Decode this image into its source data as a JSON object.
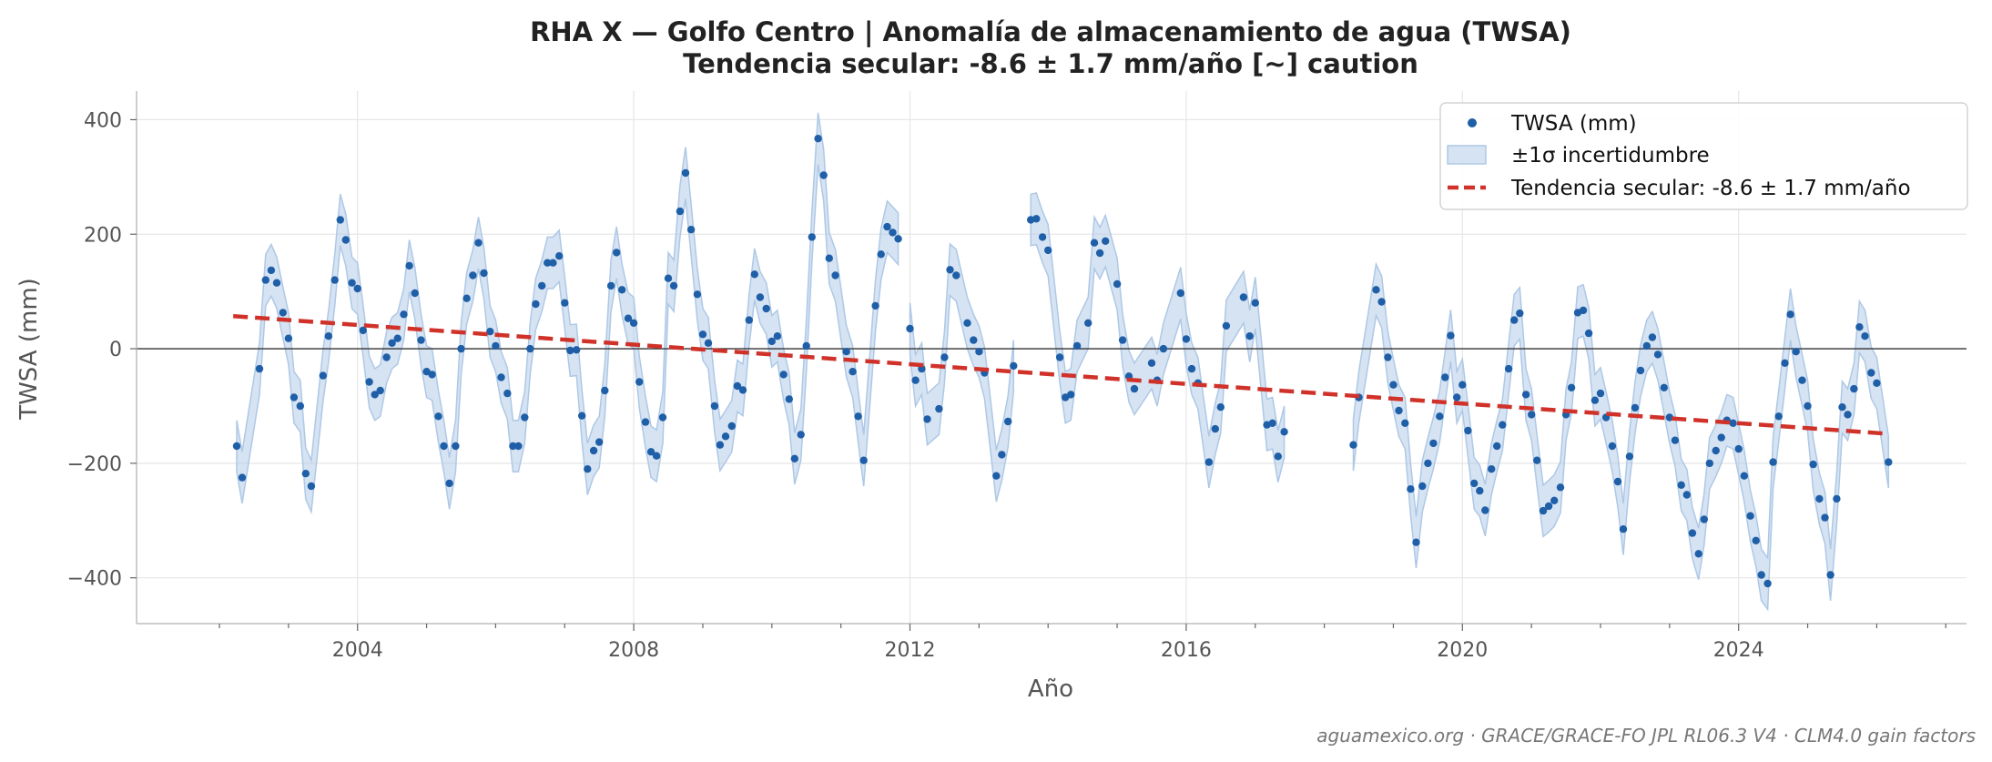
{
  "chart_data": {
    "type": "line",
    "title_line1": "RHA X — Golfo Centro  |  Anomalía de almacenamiento de agua (TWSA)",
    "title_line2": "Tendencia secular: -8.6 ± 1.7 mm/año  [~] caution",
    "xlabel": "Año",
    "ylabel": "TWSA (mm)",
    "xlim": [
      2000.8,
      2027.3
    ],
    "ylim": [
      -480,
      450
    ],
    "x_ticks": [
      2004,
      2008,
      2012,
      2016,
      2020,
      2024
    ],
    "y_ticks": [
      400,
      200,
      0,
      -200,
      -400
    ],
    "y_tick_labels": [
      "400",
      "200",
      "0",
      "−200",
      "−400"
    ],
    "grid": true,
    "zero_line": true,
    "legend_position": "top-right",
    "legend": {
      "points": "TWSA (mm)",
      "band": "±1σ incertidumbre",
      "trend": "Tendencia secular: -8.6 ± 1.7 mm/año"
    },
    "colors": {
      "points": "#1f5fa8",
      "band": "#aec8e6",
      "trend": "#d0322a",
      "zero": "#333333"
    },
    "band_halfwidth": 45,
    "trend_line": {
      "x": [
        2002.2,
        2026.1
      ],
      "y": [
        57,
        -148
      ]
    },
    "footer": "aguamexico.org · GRACE/GRACE-FO JPL RL06.3 V4 · CLM4.0 gain factors",
    "segments": [
      [
        [
          2002.25,
          -170
        ],
        [
          2002.33,
          -225
        ],
        [
          2002.58,
          -35
        ],
        [
          2002.67,
          120
        ],
        [
          2002.75,
          137
        ],
        [
          2002.83,
          115
        ],
        [
          2002.92,
          63
        ],
        [
          2003.0,
          18
        ],
        [
          2003.08,
          -85
        ],
        [
          2003.17,
          -100
        ],
        [
          2003.25,
          -218
        ],
        [
          2003.33,
          -240
        ],
        [
          2003.5,
          -47
        ],
        [
          2003.58,
          22
        ],
        [
          2003.67,
          120
        ],
        [
          2003.75,
          225
        ],
        [
          2003.83,
          190
        ],
        [
          2003.92,
          115
        ],
        [
          2004.0,
          105
        ],
        [
          2004.08,
          32
        ],
        [
          2004.17,
          -58
        ],
        [
          2004.25,
          -80
        ],
        [
          2004.33,
          -73
        ],
        [
          2004.42,
          -15
        ],
        [
          2004.5,
          10
        ],
        [
          2004.58,
          18
        ],
        [
          2004.67,
          60
        ],
        [
          2004.75,
          145
        ],
        [
          2004.83,
          97
        ],
        [
          2004.92,
          15
        ],
        [
          2005.0,
          -40
        ],
        [
          2005.08,
          -45
        ],
        [
          2005.17,
          -118
        ],
        [
          2005.25,
          -170
        ],
        [
          2005.33,
          -235
        ],
        [
          2005.42,
          -170
        ],
        [
          2005.5,
          0
        ],
        [
          2005.58,
          88
        ],
        [
          2005.67,
          128
        ],
        [
          2005.75,
          185
        ],
        [
          2005.83,
          132
        ],
        [
          2005.92,
          30
        ],
        [
          2006.0,
          5
        ],
        [
          2006.08,
          -50
        ],
        [
          2006.17,
          -78
        ],
        [
          2006.25,
          -170
        ],
        [
          2006.33,
          -170
        ],
        [
          2006.42,
          -120
        ],
        [
          2006.5,
          0
        ],
        [
          2006.58,
          78
        ],
        [
          2006.67,
          110
        ],
        [
          2006.75,
          150
        ],
        [
          2006.83,
          150
        ],
        [
          2006.92,
          162
        ],
        [
          2007.0,
          80
        ],
        [
          2007.08,
          -3
        ],
        [
          2007.17,
          -2
        ],
        [
          2007.25,
          -117
        ],
        [
          2007.33,
          -210
        ],
        [
          2007.42,
          -178
        ],
        [
          2007.5,
          -163
        ],
        [
          2007.58,
          -73
        ],
        [
          2007.67,
          110
        ],
        [
          2007.75,
          168
        ],
        [
          2007.83,
          103
        ],
        [
          2007.92,
          53
        ],
        [
          2008.0,
          45
        ],
        [
          2008.08,
          -58
        ],
        [
          2008.17,
          -128
        ],
        [
          2008.25,
          -180
        ],
        [
          2008.33,
          -187
        ],
        [
          2008.42,
          -120
        ],
        [
          2008.5,
          123
        ],
        [
          2008.58,
          110
        ],
        [
          2008.67,
          240
        ],
        [
          2008.75,
          307
        ],
        [
          2008.83,
          208
        ],
        [
          2008.92,
          95
        ],
        [
          2009.0,
          25
        ],
        [
          2009.08,
          10
        ],
        [
          2009.17,
          -100
        ],
        [
          2009.25,
          -168
        ],
        [
          2009.33,
          -153
        ],
        [
          2009.42,
          -135
        ],
        [
          2009.5,
          -65
        ],
        [
          2009.58,
          -72
        ],
        [
          2009.67,
          50
        ],
        [
          2009.75,
          130
        ],
        [
          2009.83,
          90
        ],
        [
          2009.92,
          70
        ],
        [
          2010.0,
          13
        ],
        [
          2010.08,
          22
        ],
        [
          2010.17,
          -45
        ],
        [
          2010.25,
          -88
        ],
        [
          2010.33,
          -192
        ],
        [
          2010.42,
          -150
        ],
        [
          2010.5,
          5
        ],
        [
          2010.58,
          195
        ],
        [
          2010.67,
          367
        ],
        [
          2010.75,
          303
        ],
        [
          2010.83,
          158
        ],
        [
          2010.92,
          128
        ],
        [
          2011.08,
          -5
        ],
        [
          2011.17,
          -40
        ],
        [
          2011.25,
          -118
        ],
        [
          2011.33,
          -195
        ],
        [
          2011.5,
          75
        ],
        [
          2011.58,
          165
        ],
        [
          2011.67,
          213
        ],
        [
          2011.75,
          203
        ],
        [
          2011.83,
          192
        ]
      ],
      [
        [
          2012.0,
          35
        ],
        [
          2012.08,
          -55
        ],
        [
          2012.17,
          -35
        ],
        [
          2012.25,
          -123
        ],
        [
          2012.42,
          -105
        ],
        [
          2012.5,
          -15
        ],
        [
          2012.58,
          138
        ],
        [
          2012.67,
          128
        ],
        [
          2012.83,
          45
        ],
        [
          2012.92,
          15
        ],
        [
          2013.0,
          -5
        ],
        [
          2013.08,
          -42
        ],
        [
          2013.25,
          -222
        ],
        [
          2013.33,
          -185
        ],
        [
          2013.42,
          -127
        ],
        [
          2013.5,
          -30
        ]
      ],
      [
        [
          2013.75,
          225
        ],
        [
          2013.83,
          227
        ],
        [
          2013.92,
          195
        ],
        [
          2014.0,
          172
        ],
        [
          2014.17,
          -15
        ],
        [
          2014.25,
          -85
        ],
        [
          2014.33,
          -80
        ],
        [
          2014.42,
          5
        ],
        [
          2014.58,
          45
        ],
        [
          2014.67,
          185
        ],
        [
          2014.75,
          167
        ],
        [
          2014.83,
          188
        ],
        [
          2015.0,
          113
        ],
        [
          2015.08,
          15
        ],
        [
          2015.17,
          -48
        ],
        [
          2015.25,
          -70
        ],
        [
          2015.5,
          -25
        ],
        [
          2015.58,
          -55
        ],
        [
          2015.67,
          0
        ],
        [
          2015.92,
          97
        ],
        [
          2016.0,
          17
        ],
        [
          2016.08,
          -35
        ],
        [
          2016.17,
          -60
        ],
        [
          2016.33,
          -198
        ],
        [
          2016.42,
          -140
        ],
        [
          2016.5,
          -102
        ],
        [
          2016.58,
          40
        ],
        [
          2016.83,
          90
        ],
        [
          2016.92,
          22
        ],
        [
          2017.0,
          80
        ],
        [
          2017.17,
          -133
        ],
        [
          2017.25,
          -130
        ],
        [
          2017.33,
          -188
        ],
        [
          2017.42,
          -145
        ]
      ],
      [
        [
          2018.42,
          -168
        ],
        [
          2018.5,
          -85
        ],
        [
          2018.75,
          103
        ],
        [
          2018.83,
          82
        ],
        [
          2018.92,
          -15
        ],
        [
          2019.0,
          -63
        ],
        [
          2019.08,
          -108
        ],
        [
          2019.17,
          -130
        ],
        [
          2019.25,
          -245
        ],
        [
          2019.33,
          -338
        ],
        [
          2019.42,
          -240
        ],
        [
          2019.5,
          -200
        ],
        [
          2019.58,
          -165
        ],
        [
          2019.67,
          -118
        ],
        [
          2019.75,
          -50
        ],
        [
          2019.83,
          23
        ],
        [
          2019.92,
          -85
        ],
        [
          2020.0,
          -63
        ],
        [
          2020.08,
          -143
        ],
        [
          2020.17,
          -235
        ],
        [
          2020.25,
          -248
        ],
        [
          2020.33,
          -282
        ],
        [
          2020.42,
          -210
        ],
        [
          2020.5,
          -170
        ],
        [
          2020.58,
          -133
        ],
        [
          2020.67,
          -35
        ],
        [
          2020.75,
          50
        ],
        [
          2020.83,
          62
        ],
        [
          2020.92,
          -80
        ],
        [
          2021.0,
          -115
        ],
        [
          2021.08,
          -195
        ],
        [
          2021.17,
          -283
        ],
        [
          2021.25,
          -275
        ],
        [
          2021.33,
          -265
        ],
        [
          2021.42,
          -242
        ],
        [
          2021.5,
          -115
        ],
        [
          2021.58,
          -68
        ],
        [
          2021.67,
          63
        ],
        [
          2021.75,
          67
        ],
        [
          2021.83,
          27
        ],
        [
          2021.92,
          -90
        ],
        [
          2022.0,
          -78
        ],
        [
          2022.08,
          -120
        ],
        [
          2022.17,
          -170
        ],
        [
          2022.25,
          -232
        ],
        [
          2022.33,
          -315
        ],
        [
          2022.42,
          -188
        ],
        [
          2022.5,
          -103
        ],
        [
          2022.58,
          -38
        ],
        [
          2022.67,
          5
        ],
        [
          2022.75,
          20
        ],
        [
          2022.83,
          -10
        ],
        [
          2022.92,
          -68
        ],
        [
          2023.0,
          -120
        ],
        [
          2023.08,
          -160
        ],
        [
          2023.17,
          -238
        ],
        [
          2023.25,
          -255
        ],
        [
          2023.33,
          -322
        ],
        [
          2023.42,
          -358
        ],
        [
          2023.5,
          -298
        ],
        [
          2023.58,
          -200
        ],
        [
          2023.67,
          -178
        ],
        [
          2023.75,
          -155
        ],
        [
          2023.83,
          -125
        ],
        [
          2023.92,
          -130
        ],
        [
          2024.0,
          -175
        ],
        [
          2024.08,
          -222
        ],
        [
          2024.17,
          -292
        ],
        [
          2024.25,
          -335
        ],
        [
          2024.33,
          -395
        ],
        [
          2024.42,
          -410
        ],
        [
          2024.5,
          -198
        ],
        [
          2024.58,
          -118
        ],
        [
          2024.67,
          -25
        ],
        [
          2024.75,
          60
        ],
        [
          2024.83,
          -5
        ],
        [
          2024.92,
          -55
        ],
        [
          2025.0,
          -100
        ],
        [
          2025.08,
          -202
        ],
        [
          2025.17,
          -262
        ],
        [
          2025.25,
          -295
        ],
        [
          2025.33,
          -395
        ],
        [
          2025.42,
          -262
        ],
        [
          2025.5,
          -102
        ],
        [
          2025.58,
          -115
        ],
        [
          2025.67,
          -70
        ],
        [
          2025.75,
          38
        ],
        [
          2025.83,
          22
        ],
        [
          2025.92,
          -42
        ],
        [
          2026.0,
          -60
        ],
        [
          2026.17,
          -198
        ]
      ]
    ]
  }
}
